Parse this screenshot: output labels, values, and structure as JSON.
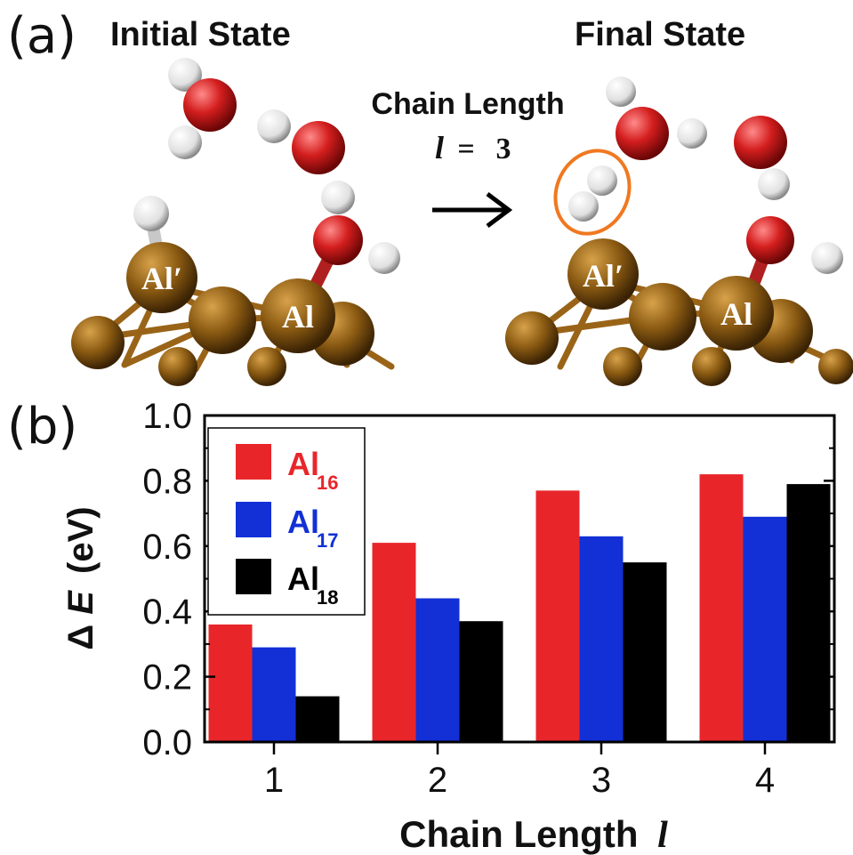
{
  "panel_a": {
    "label": "(a)",
    "initial_title": "Initial State",
    "final_title": "Final State",
    "transition_label": "Chain Length",
    "transition_symbol": "l",
    "transition_equals": "=",
    "transition_value": "3",
    "atom_labels": {
      "al_prime": "Al′",
      "al": "Al"
    },
    "colors": {
      "aluminum": "#8a5a12",
      "oxygen": "#c81e1e",
      "hydrogen": "#f2f2f2",
      "highlight": "#f07820"
    }
  },
  "panel_b": {
    "label": "(b)"
  },
  "chart_data": {
    "type": "bar",
    "categories": [
      "1",
      "2",
      "3",
      "4"
    ],
    "series": [
      {
        "name": "Al",
        "subscript": "16",
        "color": "#e8262a",
        "values": [
          0.36,
          0.61,
          0.77,
          0.82
        ]
      },
      {
        "name": "Al",
        "subscript": "17",
        "color": "#1230d6",
        "values": [
          0.29,
          0.44,
          0.63,
          0.69
        ]
      },
      {
        "name": "Al",
        "subscript": "18",
        "color": "#000000",
        "values": [
          0.14,
          0.37,
          0.55,
          0.79
        ]
      }
    ],
    "ylim": [
      0.0,
      1.0
    ],
    "yticks": [
      "0.0",
      "0.2",
      "0.4",
      "0.6",
      "0.8",
      "1.0"
    ],
    "ytick_values": [
      0.0,
      0.2,
      0.4,
      0.6,
      0.8,
      1.0
    ],
    "xlabel": "Chain Length",
    "xlabel_symbol": "l",
    "ylabel_prefix": "Δ",
    "ylabel_symbol": "E",
    "ylabel_unit": "(eV)",
    "legend_position": "top-left",
    "grid": false
  }
}
